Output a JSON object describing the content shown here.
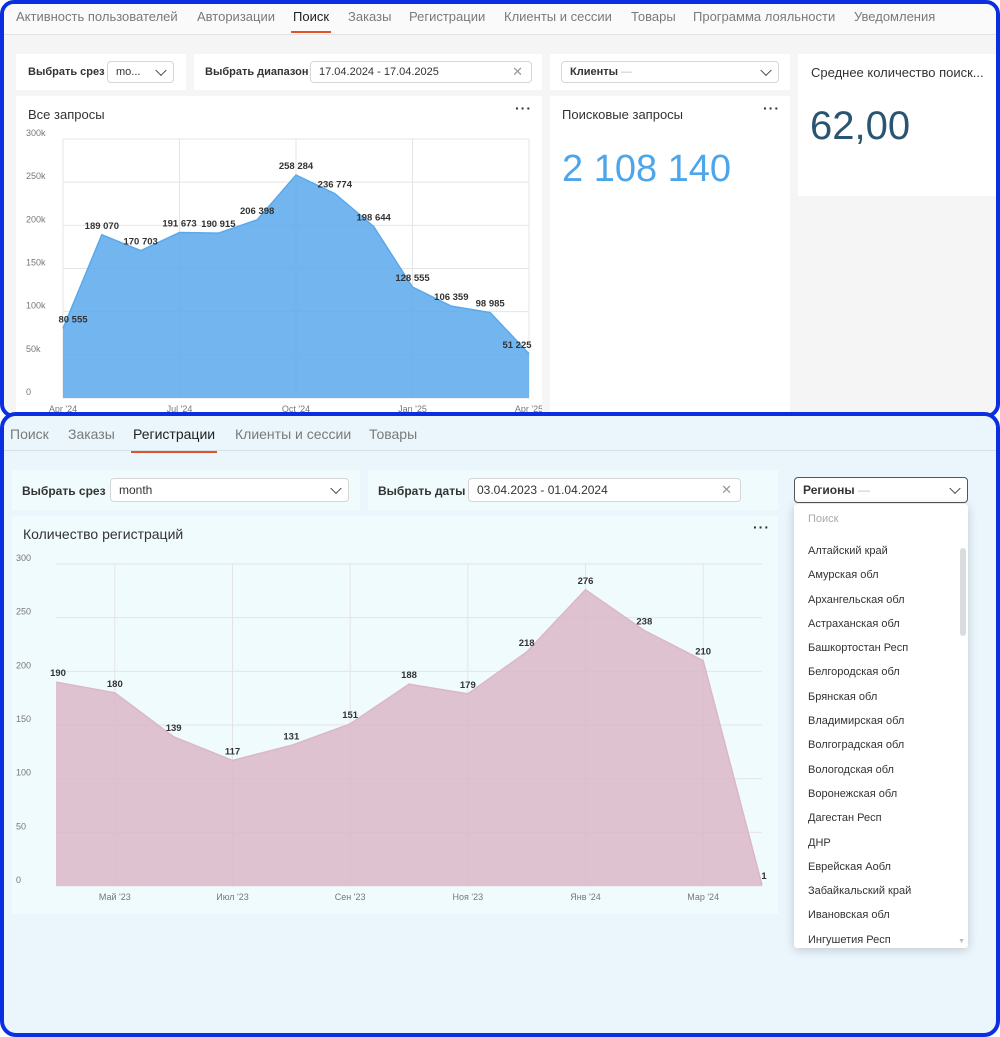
{
  "top": {
    "tabs": [
      "Активность пользователей",
      "Авторизации",
      "Поиск",
      "Заказы",
      "Регистрации",
      "Клиенты и сессии",
      "Товары",
      "Программа лояльности",
      "Уведомления"
    ],
    "active_tab": "Поиск",
    "filters": {
      "slice_label": "Выбрать срез",
      "slice_value": "mo...",
      "range_label": "Выбрать диапазон",
      "range_value": "17.04.2024 - 17.04.2025",
      "clients_placeholder": "Клиенты",
      "clients_dash": "—"
    },
    "chart_title": "Все запросы",
    "menu_dots": "···",
    "kpi_search": {
      "title": "Поисковые запросы",
      "value": "2 108 140"
    },
    "kpi_avg": {
      "title": "Среднее количество поиск...",
      "value": "62,00"
    },
    "chart_color": "#5aa9ec"
  },
  "bottom": {
    "tabs": [
      "Поиск",
      "Заказы",
      "Регистрации",
      "Клиенты и сессии",
      "Товары"
    ],
    "active_tab": "Регистрации",
    "filters": {
      "slice_label": "Выбрать срез",
      "slice_value": "month",
      "dates_label": "Выбрать даты",
      "dates_value": "03.04.2023 - 01.04.2024",
      "regions_placeholder": "Регионы",
      "regions_dash": "—"
    },
    "chart_title": "Количество регистраций",
    "menu_dots": "···",
    "dropdown": {
      "search_placeholder": "Поиск",
      "items": [
        "Алтайский край",
        "Амурская обл",
        "Архангельская обл",
        "Астраханская обл",
        "Башкортостан Респ",
        "Белгородская обл",
        "Брянская обл",
        "Владимирская обл",
        "Волгоградская обл",
        "Вологодская обл",
        "Воронежская обл",
        "Дагестан Респ",
        "ДНР",
        "Еврейская Аобл",
        "Забайкальский край",
        "Ивановская обл",
        "Ингушетия Респ"
      ]
    },
    "chart_color": "#dbb7c8"
  },
  "chart_data": [
    {
      "type": "area",
      "title": "Все запросы",
      "x_ticks": [
        "Apr '24",
        "Jul '24",
        "Oct '24",
        "Jan '25",
        "Apr '25"
      ],
      "x_tick_index": [
        0,
        3,
        6,
        9,
        12
      ],
      "values": [
        80555,
        189070,
        170703,
        191673,
        190915,
        206398,
        258284,
        236774,
        198644,
        128555,
        106359,
        98985,
        51225
      ],
      "labels": [
        "80 555",
        "189 070",
        "170 703",
        "191 673",
        "190 915",
        "206 398",
        "258 284",
        "236 774",
        "198 644",
        "128 555",
        "106 359",
        "98 985",
        "51 225"
      ],
      "y_ticks": [
        "0",
        "50k",
        "100k",
        "150k",
        "200k",
        "250k",
        "300k"
      ],
      "ylim": [
        0,
        300000
      ],
      "grid": true
    },
    {
      "type": "area",
      "title": "Количество регистраций",
      "x_ticks": [
        "Май '23",
        "Июл '23",
        "Сен '23",
        "Ноя '23",
        "Янв '24",
        "Мар '24"
      ],
      "x_tick_index": [
        1,
        3,
        5,
        7,
        9,
        11
      ],
      "values": [
        190,
        180,
        139,
        117,
        131,
        151,
        188,
        179,
        218,
        276,
        238,
        210,
        1
      ],
      "labels": [
        "190",
        "180",
        "139",
        "117",
        "131",
        "151",
        "188",
        "179",
        "218",
        "276",
        "238",
        "210",
        "1"
      ],
      "y_ticks": [
        "0",
        "50",
        "100",
        "150",
        "200",
        "250",
        "300"
      ],
      "ylim": [
        0,
        300
      ],
      "grid": true
    }
  ]
}
